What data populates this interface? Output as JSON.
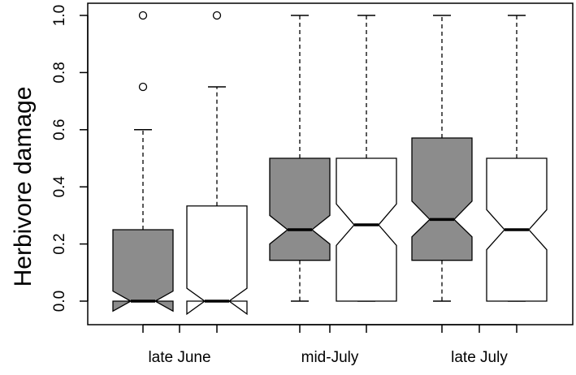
{
  "chart_data": {
    "type": "boxplot",
    "notched": true,
    "title": "",
    "xlabel": "",
    "ylabel": "Herbivore damage",
    "ylim": [
      0,
      1
    ],
    "yticks": [
      "0.0",
      "0.2",
      "0.4",
      "0.6",
      "0.8",
      "1.0"
    ],
    "groups": [
      "late June",
      "mid-July",
      "late July"
    ],
    "grid": false,
    "colors": {
      "filled": "#8c8c8c",
      "open": "#ffffff",
      "line": "#000000"
    },
    "boxes": [
      {
        "group": "late June",
        "fill": "filled",
        "whisker_low": 0,
        "q1": 0,
        "median": 0,
        "q3": 0.25,
        "whisker_high": 0.6,
        "notch_low": -0.035,
        "notch_high": 0.035,
        "outliers": [
          0.75,
          1.0
        ]
      },
      {
        "group": "late June",
        "fill": "open",
        "whisker_low": 0,
        "q1": 0,
        "median": 0,
        "q3": 0.333,
        "whisker_high": 0.75,
        "notch_low": -0.045,
        "notch_high": 0.045,
        "outliers": [
          1.0
        ]
      },
      {
        "group": "mid-July",
        "fill": "filled",
        "whisker_low": 0,
        "q1": 0.143,
        "median": 0.25,
        "q3": 0.5,
        "whisker_high": 1.0,
        "notch_low": 0.2,
        "notch_high": 0.3,
        "outliers": []
      },
      {
        "group": "mid-July",
        "fill": "open",
        "whisker_low": 0,
        "q1": 0,
        "median": 0.267,
        "q3": 0.5,
        "whisker_high": 1.0,
        "notch_low": 0.195,
        "notch_high": 0.34,
        "outliers": []
      },
      {
        "group": "late July",
        "fill": "filled",
        "whisker_low": 0,
        "q1": 0.143,
        "median": 0.286,
        "q3": 0.571,
        "whisker_high": 1.0,
        "notch_low": 0.225,
        "notch_high": 0.35,
        "outliers": []
      },
      {
        "group": "late July",
        "fill": "open",
        "whisker_low": 0,
        "q1": 0,
        "median": 0.25,
        "q3": 0.5,
        "whisker_high": 1.0,
        "notch_low": 0.18,
        "notch_high": 0.32,
        "outliers": []
      }
    ]
  }
}
